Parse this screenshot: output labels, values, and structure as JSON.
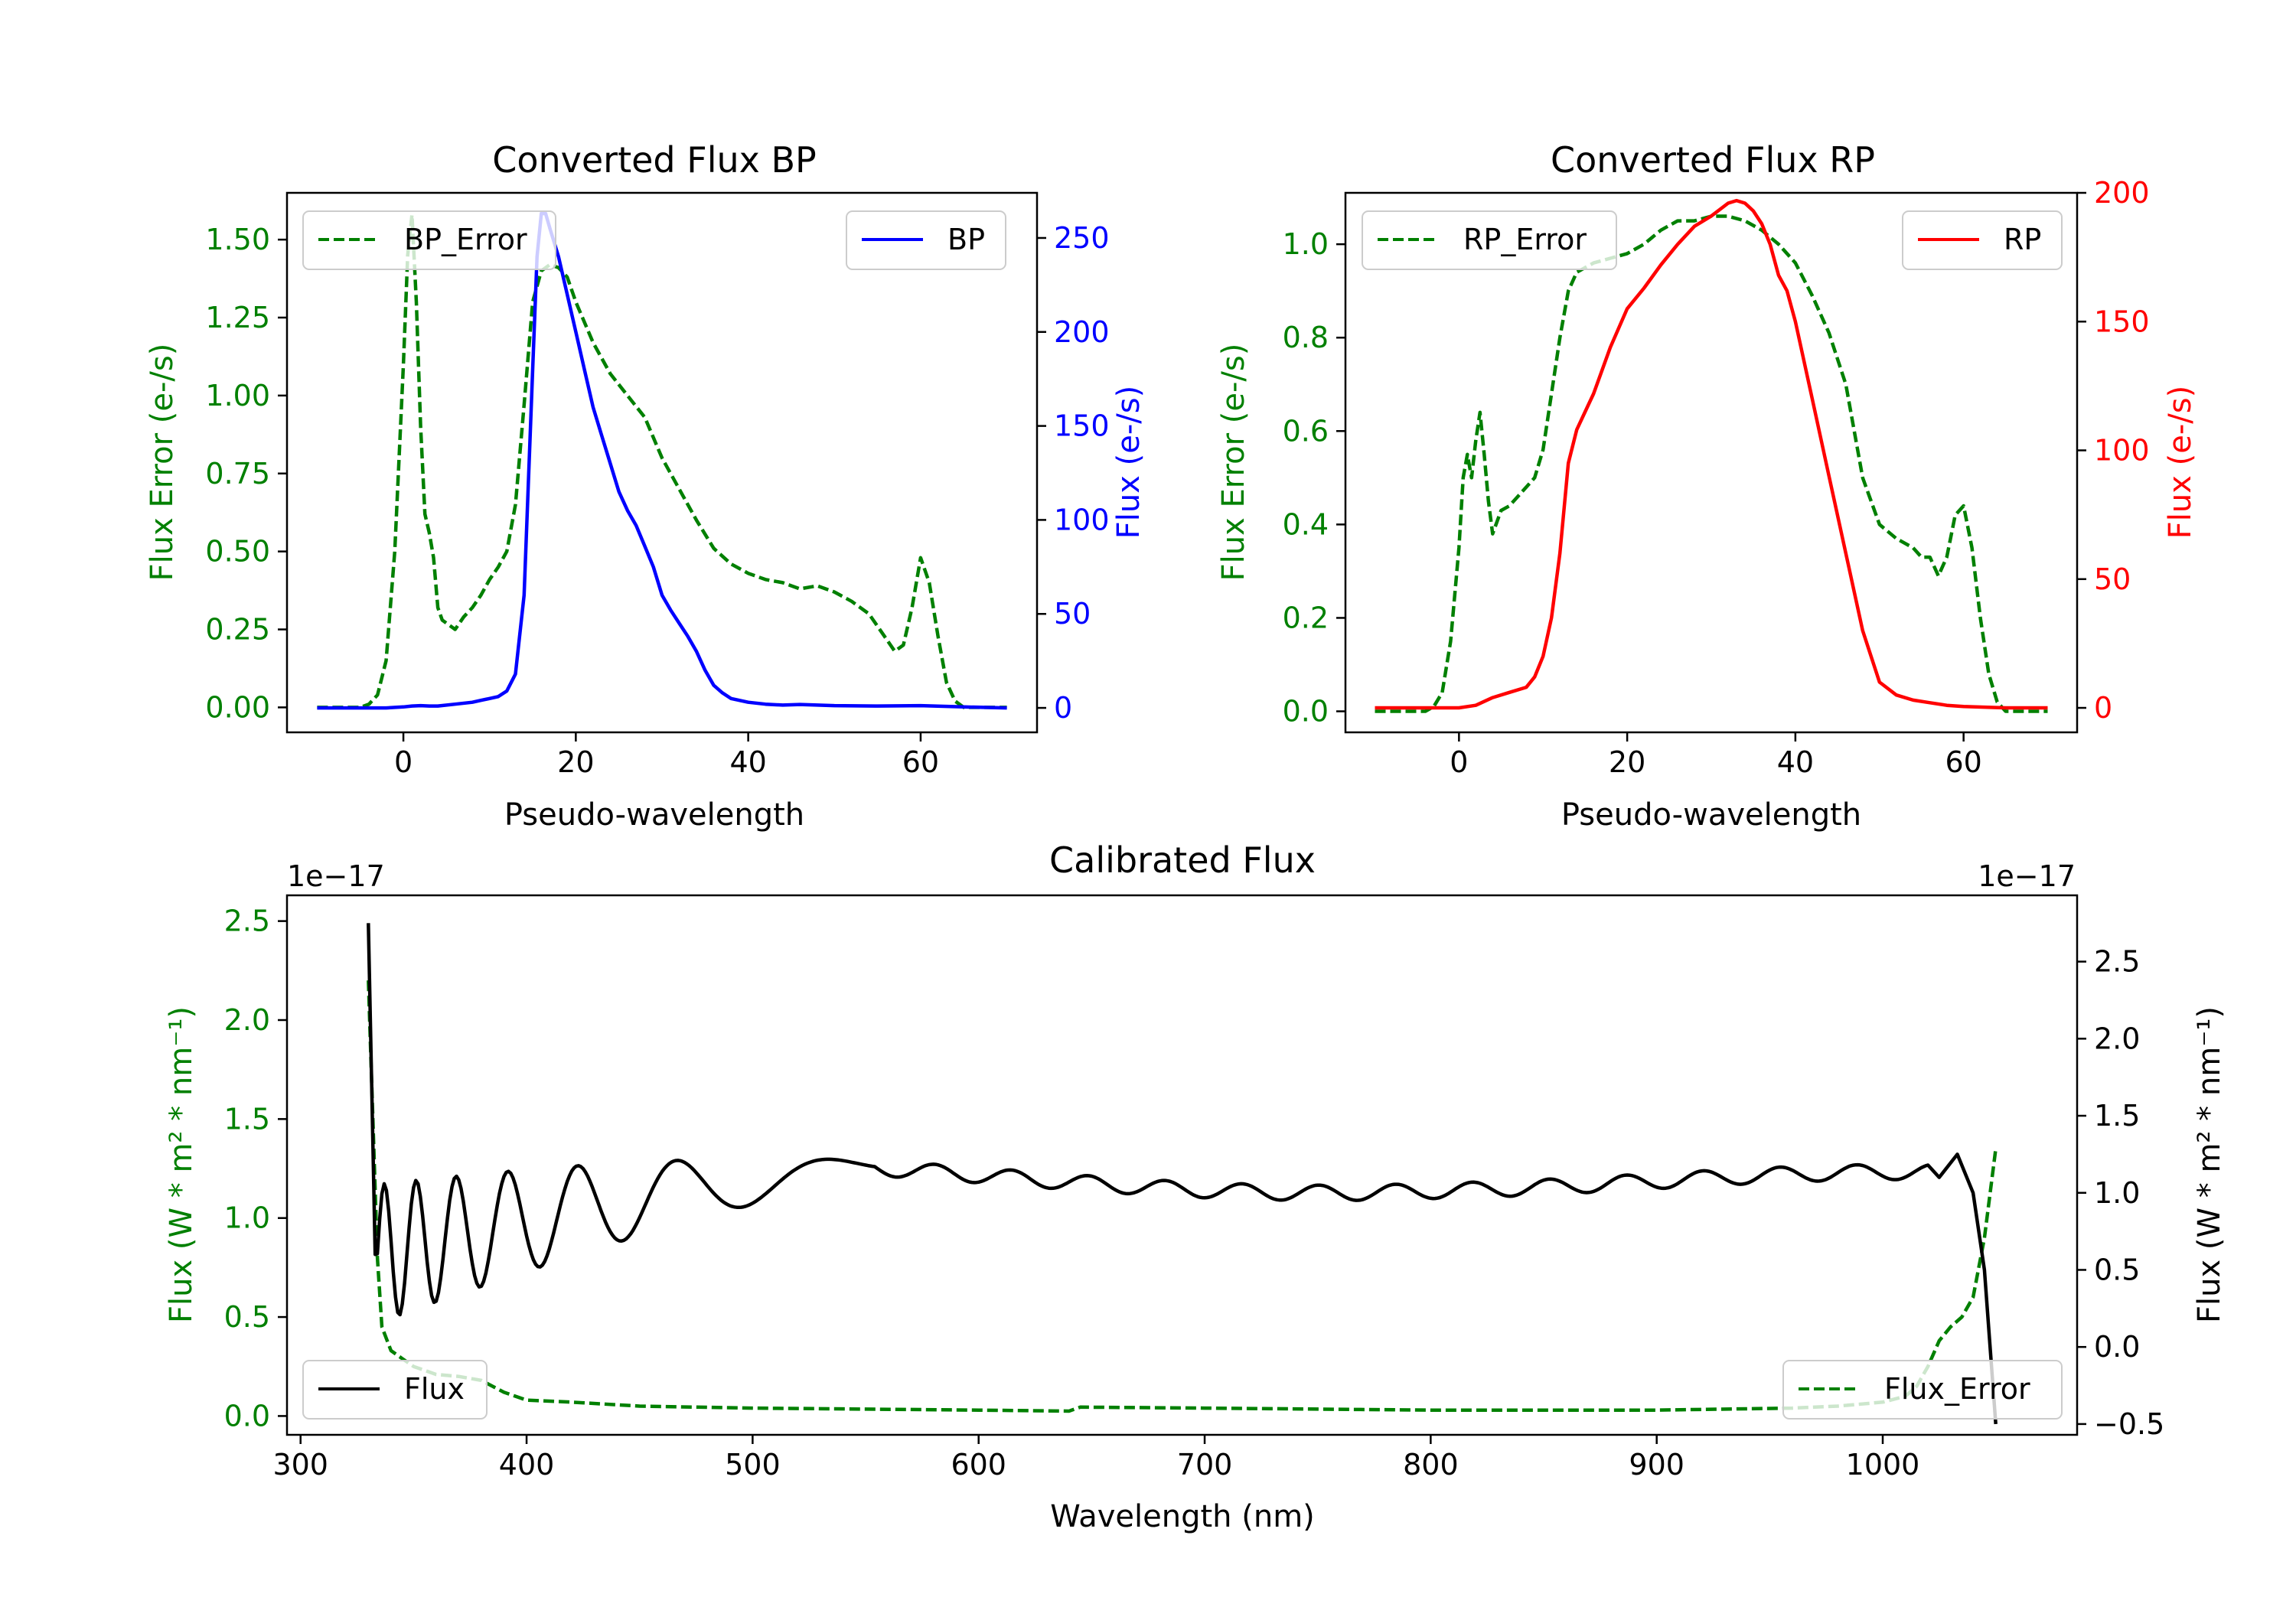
{
  "colors": {
    "bp": "#0000ff",
    "rp": "#ff0000",
    "error": "#008000",
    "flux": "#000000",
    "axis": "#000000"
  },
  "chart_data": [
    {
      "type": "line",
      "title": "Converted Flux BP",
      "xlabel": "Pseudo-wavelength",
      "ylabel_left": "Flux Error (e-/s)",
      "ylabel_right": "Flux (e-/s)",
      "xlim": [
        -13.5,
        73.5
      ],
      "ylim_left": [
        -0.08,
        1.65
      ],
      "ylim_right": [
        -13,
        274
      ],
      "xticks": [
        0,
        20,
        40,
        60
      ],
      "yticks_left": [
        "0.00",
        "0.25",
        "0.50",
        "0.75",
        "1.00",
        "1.25",
        "1.50"
      ],
      "yticks_right": [
        "0",
        "50",
        "100",
        "150",
        "200",
        "250"
      ],
      "grid": false,
      "series": [
        {
          "name": "BP_Error",
          "axis": "left",
          "style": "dashed",
          "color": "#008000",
          "x": [
            -10,
            -5,
            -4,
            -3,
            -2,
            -1,
            0,
            0.5,
            1,
            1.5,
            2,
            2.5,
            3,
            3.5,
            4,
            4.5,
            5,
            6,
            7,
            8,
            9,
            10,
            11,
            12,
            13,
            14,
            15,
            16,
            17,
            18,
            19,
            20,
            22,
            24,
            26,
            28,
            30,
            32,
            34,
            36,
            38,
            40,
            42,
            44,
            46,
            48,
            50,
            52,
            54,
            56,
            57,
            58,
            59,
            60,
            61,
            62,
            63,
            64,
            65,
            66,
            70
          ],
          "values": [
            0,
            0,
            0.01,
            0.04,
            0.15,
            0.5,
            1.1,
            1.45,
            1.58,
            1.3,
            0.9,
            0.62,
            0.56,
            0.48,
            0.32,
            0.28,
            0.27,
            0.25,
            0.29,
            0.32,
            0.36,
            0.41,
            0.45,
            0.5,
            0.65,
            0.97,
            1.3,
            1.4,
            1.42,
            1.41,
            1.38,
            1.3,
            1.17,
            1.07,
            1.0,
            0.93,
            0.8,
            0.7,
            0.6,
            0.51,
            0.46,
            0.43,
            0.41,
            0.4,
            0.38,
            0.39,
            0.37,
            0.34,
            0.3,
            0.22,
            0.18,
            0.2,
            0.32,
            0.48,
            0.4,
            0.23,
            0.08,
            0.02,
            0,
            0,
            0
          ]
        },
        {
          "name": "BP",
          "axis": "right",
          "style": "solid",
          "color": "#0000ff",
          "x": [
            -10,
            -5,
            -2,
            0,
            1,
            2,
            3,
            4,
            6,
            8,
            9,
            10,
            11,
            12,
            13,
            14,
            15,
            15.5,
            16,
            16.5,
            17,
            18,
            19,
            20,
            21,
            22,
            23,
            24,
            25,
            26,
            27,
            28,
            29,
            30,
            31,
            32,
            33,
            34,
            35,
            36,
            37,
            38,
            40,
            42,
            44,
            46,
            48,
            50,
            55,
            60,
            65,
            70
          ],
          "values": [
            0,
            0,
            0,
            0.5,
            1,
            1.2,
            1,
            1,
            2,
            3,
            4,
            5,
            6,
            9,
            18,
            60,
            180,
            240,
            263,
            263,
            255,
            240,
            220,
            200,
            180,
            160,
            145,
            130,
            115,
            105,
            97,
            86,
            75,
            60,
            52,
            45,
            38,
            30,
            20,
            12,
            8,
            5,
            3,
            2,
            1.5,
            1.8,
            1.5,
            1.2,
            1,
            1.2,
            0.5,
            0
          ]
        }
      ],
      "legend": [
        {
          "label": "BP_Error",
          "position": "top-left"
        },
        {
          "label": "BP",
          "position": "top-right"
        }
      ]
    },
    {
      "type": "line",
      "title": "Converted Flux RP",
      "xlabel": "Pseudo-wavelength",
      "ylabel_left": "Flux Error (e-/s)",
      "ylabel_right": "Flux (e-/s)",
      "xlim": [
        -13.5,
        73.5
      ],
      "ylim_left": [
        -0.045,
        1.11
      ],
      "ylim_right": [
        -9.5,
        200
      ],
      "xticks": [
        0,
        20,
        40,
        60
      ],
      "yticks_left": [
        "0.0",
        "0.2",
        "0.4",
        "0.6",
        "0.8",
        "1.0"
      ],
      "yticks_right": [
        "0",
        "50",
        "100",
        "150",
        "200"
      ],
      "grid": false,
      "series": [
        {
          "name": "RP_Error",
          "axis": "left",
          "style": "dashed",
          "color": "#008000",
          "x": [
            -10,
            -5,
            -4,
            -3,
            -2,
            -1,
            0,
            0.5,
            1,
            1.5,
            2,
            2.5,
            3,
            3.5,
            4,
            5,
            6,
            7,
            8,
            9,
            10,
            11,
            12,
            13,
            14,
            15,
            16,
            18,
            20,
            22,
            24,
            26,
            28,
            30,
            32,
            34,
            36,
            38,
            40,
            42,
            44,
            46,
            48,
            50,
            52,
            54,
            55,
            56,
            57,
            58,
            59,
            60,
            61,
            62,
            63,
            64,
            65,
            66,
            70
          ],
          "values": [
            0,
            0,
            0,
            0.01,
            0.04,
            0.15,
            0.35,
            0.5,
            0.55,
            0.5,
            0.58,
            0.64,
            0.55,
            0.45,
            0.38,
            0.43,
            0.44,
            0.46,
            0.48,
            0.5,
            0.56,
            0.68,
            0.8,
            0.9,
            0.94,
            0.95,
            0.96,
            0.97,
            0.98,
            1.0,
            1.03,
            1.05,
            1.05,
            1.06,
            1.06,
            1.05,
            1.03,
            1.0,
            0.96,
            0.89,
            0.81,
            0.7,
            0.5,
            0.4,
            0.37,
            0.35,
            0.33,
            0.33,
            0.29,
            0.33,
            0.42,
            0.44,
            0.35,
            0.2,
            0.08,
            0.02,
            0,
            0,
            0
          ]
        },
        {
          "name": "RP",
          "axis": "right",
          "style": "solid",
          "color": "#ff0000",
          "x": [
            -10,
            -5,
            0,
            2,
            4,
            6,
            8,
            9,
            10,
            11,
            12,
            13,
            14,
            15,
            16,
            18,
            20,
            22,
            24,
            26,
            28,
            30,
            32,
            33,
            34,
            35,
            36,
            37,
            38,
            39,
            40,
            42,
            44,
            46,
            48,
            50,
            52,
            54,
            56,
            58,
            60,
            65,
            70
          ],
          "values": [
            0,
            0,
            0,
            1,
            4,
            6,
            8,
            12,
            20,
            35,
            60,
            95,
            108,
            115,
            122,
            140,
            155,
            163,
            172,
            180,
            187,
            191,
            196,
            197,
            196,
            193,
            188,
            180,
            168,
            162,
            150,
            120,
            90,
            60,
            30,
            10,
            5,
            3,
            2,
            1,
            0.5,
            0,
            0
          ]
        }
      ],
      "legend": [
        {
          "label": "RP_Error",
          "position": "top-left"
        },
        {
          "label": "RP",
          "position": "top-right"
        }
      ]
    },
    {
      "type": "line",
      "title": "Calibrated Flux",
      "xlabel": "Wavelength (nm)",
      "ylabel_left": "Flux (W * m² * nm⁻¹)",
      "ylabel_right": "Flux (W * m² * nm⁻¹)",
      "offset_left": "1e−17",
      "offset_right": "1e−17",
      "xlim": [
        294,
        1086
      ],
      "ylim_left": [
        -0.095,
        2.63
      ],
      "ylim_right": [
        -0.57,
        2.93
      ],
      "xticks": [
        300,
        400,
        500,
        600,
        700,
        800,
        900,
        1000
      ],
      "yticks_left": [
        "0.0",
        "0.5",
        "1.0",
        "1.5",
        "2.0",
        "2.5"
      ],
      "yticks_right": [
        "−0.5",
        "0.0",
        "0.5",
        "1.0",
        "1.5",
        "2.0",
        "2.5"
      ],
      "grid": false,
      "series": [
        {
          "name": "Flux_Error",
          "axis": "left",
          "style": "dashed",
          "color": "#008000",
          "x": [
            330,
            332,
            334,
            336,
            340,
            345,
            350,
            360,
            370,
            380,
            390,
            400,
            420,
            450,
            500,
            550,
            600,
            640,
            645,
            700,
            800,
            900,
            960,
            980,
            1000,
            1010,
            1015,
            1020,
            1025,
            1030,
            1035,
            1040,
            1045,
            1050
          ],
          "values": [
            2.2,
            1.5,
            0.8,
            0.45,
            0.33,
            0.29,
            0.25,
            0.21,
            0.2,
            0.18,
            0.12,
            0.08,
            0.07,
            0.05,
            0.04,
            0.035,
            0.03,
            0.025,
            0.045,
            0.04,
            0.03,
            0.03,
            0.04,
            0.05,
            0.07,
            0.1,
            0.15,
            0.25,
            0.38,
            0.45,
            0.5,
            0.6,
            0.9,
            1.35
          ]
        },
        {
          "name": "Flux",
          "axis": "right",
          "style": "solid",
          "color": "#000000",
          "amplitude": [
            0.45,
            0.05
          ],
          "period_nm": [
            12,
            34
          ],
          "mean": 1.1,
          "tail_values": [
            1.1,
            1.25,
            1.0,
            0.5,
            -0.5
          ]
        }
      ],
      "legend": [
        {
          "label": "Flux",
          "position": "lower-left"
        },
        {
          "label": "Flux_Error",
          "position": "lower-right"
        }
      ]
    }
  ]
}
